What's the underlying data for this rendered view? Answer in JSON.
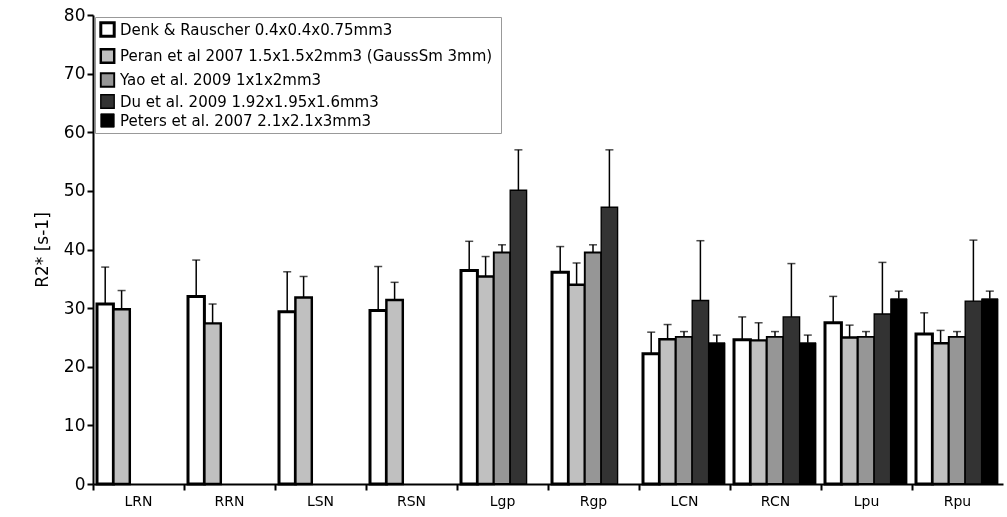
{
  "chart_data": {
    "type": "bar",
    "ylabel": "R2* [s-1]",
    "categories": [
      "LRN",
      "RRN",
      "LSN",
      "RSN",
      "Lgp",
      "Rgp",
      "LCN",
      "RCN",
      "Lpu",
      "Rpu"
    ],
    "series": [
      {
        "name": "Denk & Rauscher 0.4x0.4x0.75mm3",
        "color": "#ffffff",
        "values": [
          30.7,
          32.0,
          29.4,
          29.6,
          36.4,
          36.1,
          22.2,
          24.6,
          27.5,
          25.6
        ],
        "errors": [
          [
            30.7,
            37.0
          ],
          [
            32.0,
            38.2
          ],
          [
            29.4,
            36.2
          ],
          [
            29.6,
            37.1
          ],
          [
            36.4,
            41.4
          ],
          [
            36.1,
            40.5
          ],
          [
            22.2,
            25.9
          ],
          [
            24.6,
            28.5
          ],
          [
            27.5,
            32.0
          ],
          [
            25.6,
            29.2
          ]
        ]
      },
      {
        "name": "Peran et al 2007  1.5x1.5x2mm3 (GaussSm 3mm)",
        "color": "#c0c0c0",
        "values": [
          29.8,
          27.4,
          31.8,
          31.4,
          35.4,
          34.0,
          24.7,
          24.5,
          25.0,
          24.0
        ],
        "errors": [
          [
            29.8,
            33.0
          ],
          [
            27.4,
            30.7
          ],
          [
            31.8,
            35.4
          ],
          [
            31.4,
            34.4
          ],
          [
            35.4,
            38.8
          ],
          [
            34.0,
            37.7
          ],
          [
            24.7,
            27.2
          ],
          [
            24.5,
            27.5
          ],
          [
            25.0,
            27.1
          ],
          [
            24.0,
            26.2
          ]
        ]
      },
      {
        "name": "Yao et al. 2009    1x1x2mm3",
        "color": "#969696",
        "values": [
          null,
          null,
          null,
          null,
          39.5,
          39.5,
          25.1,
          25.1,
          25.1,
          25.1
        ],
        "errors": [
          null,
          null,
          null,
          null,
          [
            39.5,
            40.8
          ],
          [
            39.5,
            40.8
          ],
          [
            25.1,
            26.0
          ],
          [
            25.1,
            26.0
          ],
          [
            25.1,
            26.0
          ],
          [
            25.1,
            26.0
          ]
        ]
      },
      {
        "name": "Du et al. 2009     1.92x1.95x1.6mm3",
        "color": "#333333",
        "values": [
          null,
          null,
          null,
          null,
          50.1,
          47.2,
          31.3,
          28.5,
          29.0,
          31.2
        ],
        "errors": [
          null,
          null,
          null,
          null,
          [
            50.1,
            57
          ],
          [
            47.2,
            57
          ],
          [
            31.3,
            41.5
          ],
          [
            28.5,
            37.6
          ],
          [
            29.0,
            37.8
          ],
          [
            31.2,
            41.6
          ]
        ]
      },
      {
        "name": "Peters et al. 2007 2.1x2.1x3mm3",
        "color": "#000000",
        "values": [
          null,
          null,
          null,
          null,
          null,
          null,
          24.1,
          24.1,
          31.6,
          31.6
        ],
        "errors": [
          null,
          null,
          null,
          null,
          null,
          null,
          [
            24.1,
            25.4
          ],
          [
            24.1,
            25.4
          ],
          [
            31.6,
            32.9
          ],
          [
            31.6,
            32.9
          ]
        ]
      }
    ],
    "ylim": [
      0,
      80
    ],
    "yticks": [
      0,
      10,
      20,
      30,
      40,
      50,
      60,
      70,
      80
    ],
    "legend": "top left"
  }
}
